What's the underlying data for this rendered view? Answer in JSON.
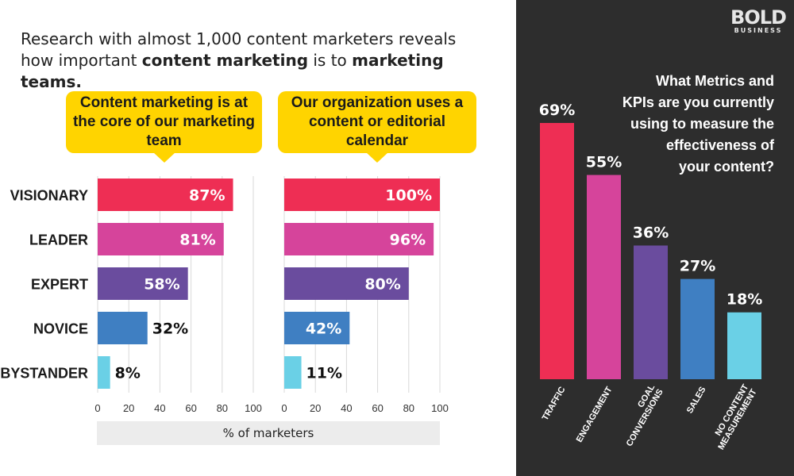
{
  "intro": {
    "line1": "Research with almost 1,000 content marketers reveals",
    "line2_a": "how important ",
    "line2_b": "content marketing",
    "line2_c": " is to ",
    "line2_d": "marketing teams."
  },
  "right_title_lines": [
    "What Metrics and",
    "KPIs are you currently",
    "using to measure the",
    "effectiveness of",
    "your content?"
  ],
  "logo": {
    "main": "BOLD",
    "sub": "BUSINESS"
  },
  "colors": {
    "red": "#ee2e54",
    "pink": "#d6449b",
    "purple": "#6a4c9e",
    "blue": "#3f7fc2",
    "cyan": "#6ad0e6",
    "yellow": "#ffd400",
    "dark": "#2d2d2d"
  },
  "chart_data": [
    {
      "type": "bar",
      "orientation": "horizontal",
      "title": "Content marketing is at the core of our marketing team",
      "categories": [
        "VISIONARY",
        "LEADER",
        "EXPERT",
        "NOVICE",
        "BYSTANDER"
      ],
      "values": [
        87,
        81,
        58,
        32,
        8
      ],
      "labels": [
        "87%",
        "81%",
        "58%",
        "32%",
        "8%"
      ],
      "xlim": [
        0,
        100
      ],
      "xticks": [
        0,
        20,
        40,
        60,
        80,
        100
      ],
      "xlabel": "% of marketers",
      "grid": true
    },
    {
      "type": "bar",
      "orientation": "horizontal",
      "title": "Our organization uses a content or editorial calendar",
      "categories": [
        "VISIONARY",
        "LEADER",
        "EXPERT",
        "NOVICE",
        "BYSTANDER"
      ],
      "values": [
        100,
        96,
        80,
        42,
        11
      ],
      "labels": [
        "100%",
        "96%",
        "80%",
        "42%",
        "11%"
      ],
      "xlim": [
        0,
        100
      ],
      "xticks": [
        0,
        20,
        40,
        60,
        80,
        100
      ],
      "xlabel": "% of marketers",
      "grid": true
    },
    {
      "type": "bar",
      "orientation": "vertical",
      "title": "What Metrics and KPIs are you currently using to measure the effectiveness of your content?",
      "categories": [
        "TRAFFIC",
        "ENGAGEMENT",
        "GOAL CONVERSIONS",
        "SALES",
        "NO CONTENT MEASUREMENT"
      ],
      "category_lines": [
        [
          "TRAFFIC"
        ],
        [
          "ENGAGEMENT"
        ],
        [
          "GOAL",
          "CONVERSIONS"
        ],
        [
          "SALES"
        ],
        [
          "NO CONTENT",
          "MEASUREMENT"
        ]
      ],
      "values": [
        69,
        55,
        36,
        27,
        18
      ],
      "labels": [
        "69%",
        "55%",
        "36%",
        "27%",
        "18%"
      ],
      "ylim": [
        0,
        69
      ],
      "grid": false
    }
  ]
}
